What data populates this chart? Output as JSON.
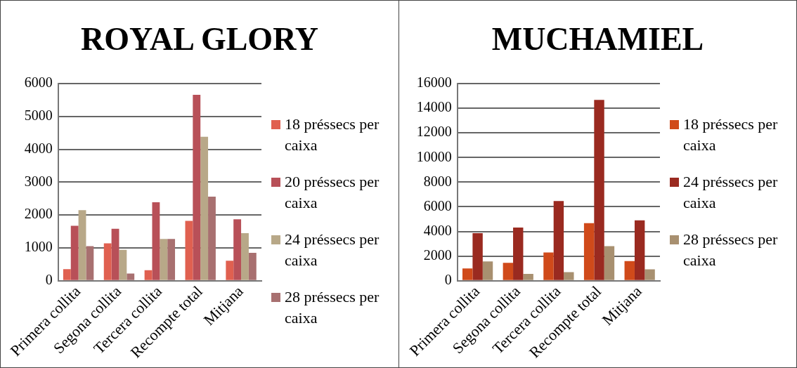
{
  "chart_data": [
    {
      "type": "bar",
      "title": "ROYAL GLORY",
      "categories": [
        "Primera collita",
        "Segona collita",
        "Tercera collita",
        "Recompte total",
        "Mitjana"
      ],
      "series": [
        {
          "name": "18 préssecs per caixa",
          "color": "#e06050",
          "values": [
            350,
            1140,
            320,
            1820,
            610
          ]
        },
        {
          "name": "20 préssecs per caixa",
          "color": "#b85058",
          "values": [
            1670,
            1580,
            2390,
            5660,
            1870
          ]
        },
        {
          "name": "24 préssecs per caixa",
          "color": "#b8a888",
          "values": [
            2150,
            940,
            1270,
            4380,
            1450
          ]
        },
        {
          "name": "28 préssecs per caixa",
          "color": "#a87070",
          "values": [
            1050,
            220,
            1270,
            2560,
            850
          ]
        }
      ],
      "ylim": [
        0,
        6000
      ],
      "yticks": [
        0,
        1000,
        2000,
        3000,
        4000,
        5000,
        6000
      ],
      "grid": "y",
      "legend": "right"
    },
    {
      "type": "bar",
      "title": "MUCHAMIEL",
      "categories": [
        "Primera collita",
        "Segona collita",
        "Tercera collita",
        "Recompte total",
        "Mitjana"
      ],
      "series": [
        {
          "name": "18 préssecs per caixa",
          "color": "#d04a1a",
          "values": [
            1000,
            1450,
            2290,
            4670,
            1590
          ]
        },
        {
          "name": "24 préssecs per caixa",
          "color": "#9a2a20",
          "values": [
            3860,
            4320,
            6470,
            14670,
            4900
          ]
        },
        {
          "name": "28 préssecs per caixa",
          "color": "#a89070",
          "values": [
            1570,
            560,
            700,
            2800,
            930
          ]
        }
      ],
      "ylim": [
        0,
        16000
      ],
      "yticks": [
        0,
        2000,
        4000,
        6000,
        8000,
        10000,
        12000,
        14000,
        16000
      ],
      "grid": "y",
      "legend": "right"
    }
  ]
}
